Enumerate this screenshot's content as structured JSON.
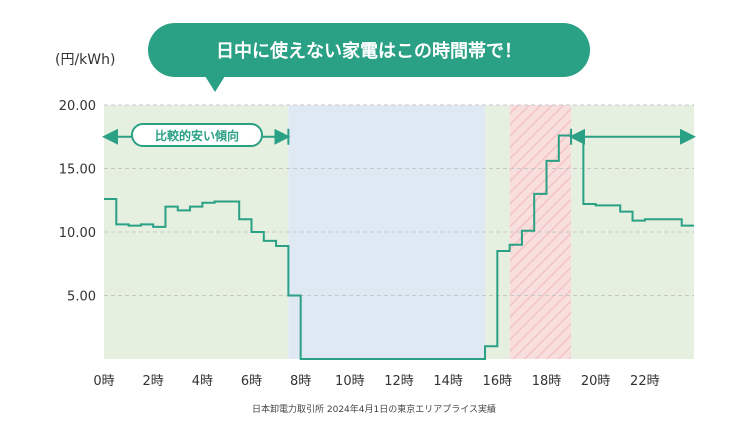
{
  "chart_data": {
    "type": "line",
    "step": true,
    "title": "",
    "ylabel": "(円/kWh)",
    "xlabel": "",
    "ylim": [
      0,
      20
    ],
    "xlim": [
      0,
      24
    ],
    "y_ticks": [
      "20.00",
      "15.00",
      "10.00",
      "5.00"
    ],
    "y_tick_values": [
      20,
      15,
      10,
      5
    ],
    "x_ticks": [
      "0時",
      "2時",
      "4時",
      "6時",
      "8時",
      "10時",
      "12時",
      "14時",
      "16時",
      "18時",
      "20時",
      "22時"
    ],
    "x_tick_values": [
      0,
      2,
      4,
      6,
      8,
      10,
      12,
      14,
      16,
      18,
      20,
      22
    ],
    "series": [
      {
        "values": [
          [
            0.0,
            12.6
          ],
          [
            0.5,
            10.6
          ],
          [
            1.0,
            10.5
          ],
          [
            1.5,
            10.6
          ],
          [
            2.0,
            10.4
          ],
          [
            2.5,
            12.0
          ],
          [
            3.0,
            11.7
          ],
          [
            3.5,
            12.0
          ],
          [
            4.0,
            12.3
          ],
          [
            4.5,
            12.4
          ],
          [
            5.0,
            12.4
          ],
          [
            5.5,
            11.0
          ],
          [
            6.0,
            10.0
          ],
          [
            6.5,
            9.3
          ],
          [
            7.0,
            8.9
          ],
          [
            7.5,
            5.0
          ],
          [
            8.0,
            0.0
          ],
          [
            8.5,
            0.0
          ],
          [
            9.0,
            0.0
          ],
          [
            9.5,
            0.0
          ],
          [
            10.0,
            0.0
          ],
          [
            10.5,
            0.0
          ],
          [
            11.0,
            0.0
          ],
          [
            11.5,
            0.0
          ],
          [
            12.0,
            0.0
          ],
          [
            12.5,
            0.0
          ],
          [
            13.0,
            0.0
          ],
          [
            13.5,
            0.0
          ],
          [
            14.0,
            0.0
          ],
          [
            14.5,
            0.0
          ],
          [
            15.0,
            0.0
          ],
          [
            15.5,
            1.0
          ],
          [
            16.0,
            8.5
          ],
          [
            16.5,
            9.0
          ],
          [
            17.0,
            10.1
          ],
          [
            17.5,
            13.0
          ],
          [
            18.0,
            15.6
          ],
          [
            18.5,
            17.6
          ],
          [
            19.0,
            17.5
          ],
          [
            19.5,
            12.2
          ],
          [
            20.0,
            12.1
          ],
          [
            20.5,
            12.1
          ],
          [
            21.0,
            11.6
          ],
          [
            21.5,
            10.9
          ],
          [
            22.0,
            11.0
          ],
          [
            22.5,
            11.0
          ],
          [
            23.0,
            11.0
          ],
          [
            23.5,
            10.5
          ],
          [
            24.0,
            10.5
          ]
        ]
      }
    ],
    "shaded_regions": [
      {
        "x": [
          0,
          7.5
        ],
        "color": "#e6f0e1"
      },
      {
        "x": [
          7.5,
          15.5
        ],
        "color": "#dfe9f4"
      },
      {
        "x": [
          15.5,
          16.5
        ],
        "color": "#e6f0e1"
      },
      {
        "x": [
          16.5,
          19.0
        ],
        "color": "#f9dede"
      },
      {
        "x": [
          19.0,
          24.0
        ],
        "color": "#e6f0e1"
      }
    ],
    "grid": true,
    "colors": {
      "line": "#2aa084",
      "accent": "#2aa084",
      "grid": "#c8c8c8"
    },
    "annotations": {
      "callout": "日中に使えない家電はこの時間帯で！",
      "pill": "比較的安い傾向",
      "low_price_arrows": [
        [
          0,
          7.5
        ],
        [
          19.0,
          24.0
        ]
      ]
    },
    "source": "日本卸電力取引所 2024年4月1日の東京エリアプライス実績"
  }
}
